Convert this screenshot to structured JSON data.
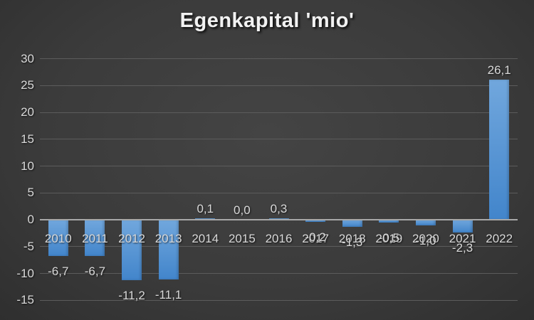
{
  "chart_data": {
    "type": "bar",
    "title": "Egenkapital 'mio'",
    "categories": [
      "2010",
      "2011",
      "2012",
      "2013",
      "2014",
      "2015",
      "2016",
      "2017",
      "2018",
      "2019",
      "2020",
      "2021",
      "2022"
    ],
    "values": [
      -6.7,
      -6.7,
      -11.2,
      -11.1,
      0.1,
      0.0,
      0.3,
      -0.2,
      -1.3,
      -0.5,
      -1.0,
      -2.3,
      26.1
    ],
    "value_labels": [
      "-6,7",
      "-6,7",
      "-11,2",
      "-11,1",
      "0,1",
      "0,0",
      "0,3",
      "-0,2",
      "-1,3",
      "-0,5",
      "-1,0",
      "-2,3",
      "26,1"
    ],
    "yticks": [
      30,
      25,
      20,
      15,
      10,
      5,
      0,
      -5,
      -10,
      -15
    ],
    "ytick_labels": [
      "30",
      "25",
      "20",
      "15",
      "10",
      "5",
      "0",
      "-5",
      "-10",
      "-15"
    ],
    "ylim": [
      -15,
      30
    ],
    "grid": true,
    "legend": "none",
    "colors": {
      "bar_top": "#71a7dd",
      "bar_bottom": "#4285cb",
      "gridline": "#5c5c5c",
      "axis_line": "#a8a8a8",
      "text": "#d9d9d9",
      "title": "#f2f2f2",
      "background_center": "#3f3f3f",
      "background_edge": "#1c1c1c"
    }
  }
}
